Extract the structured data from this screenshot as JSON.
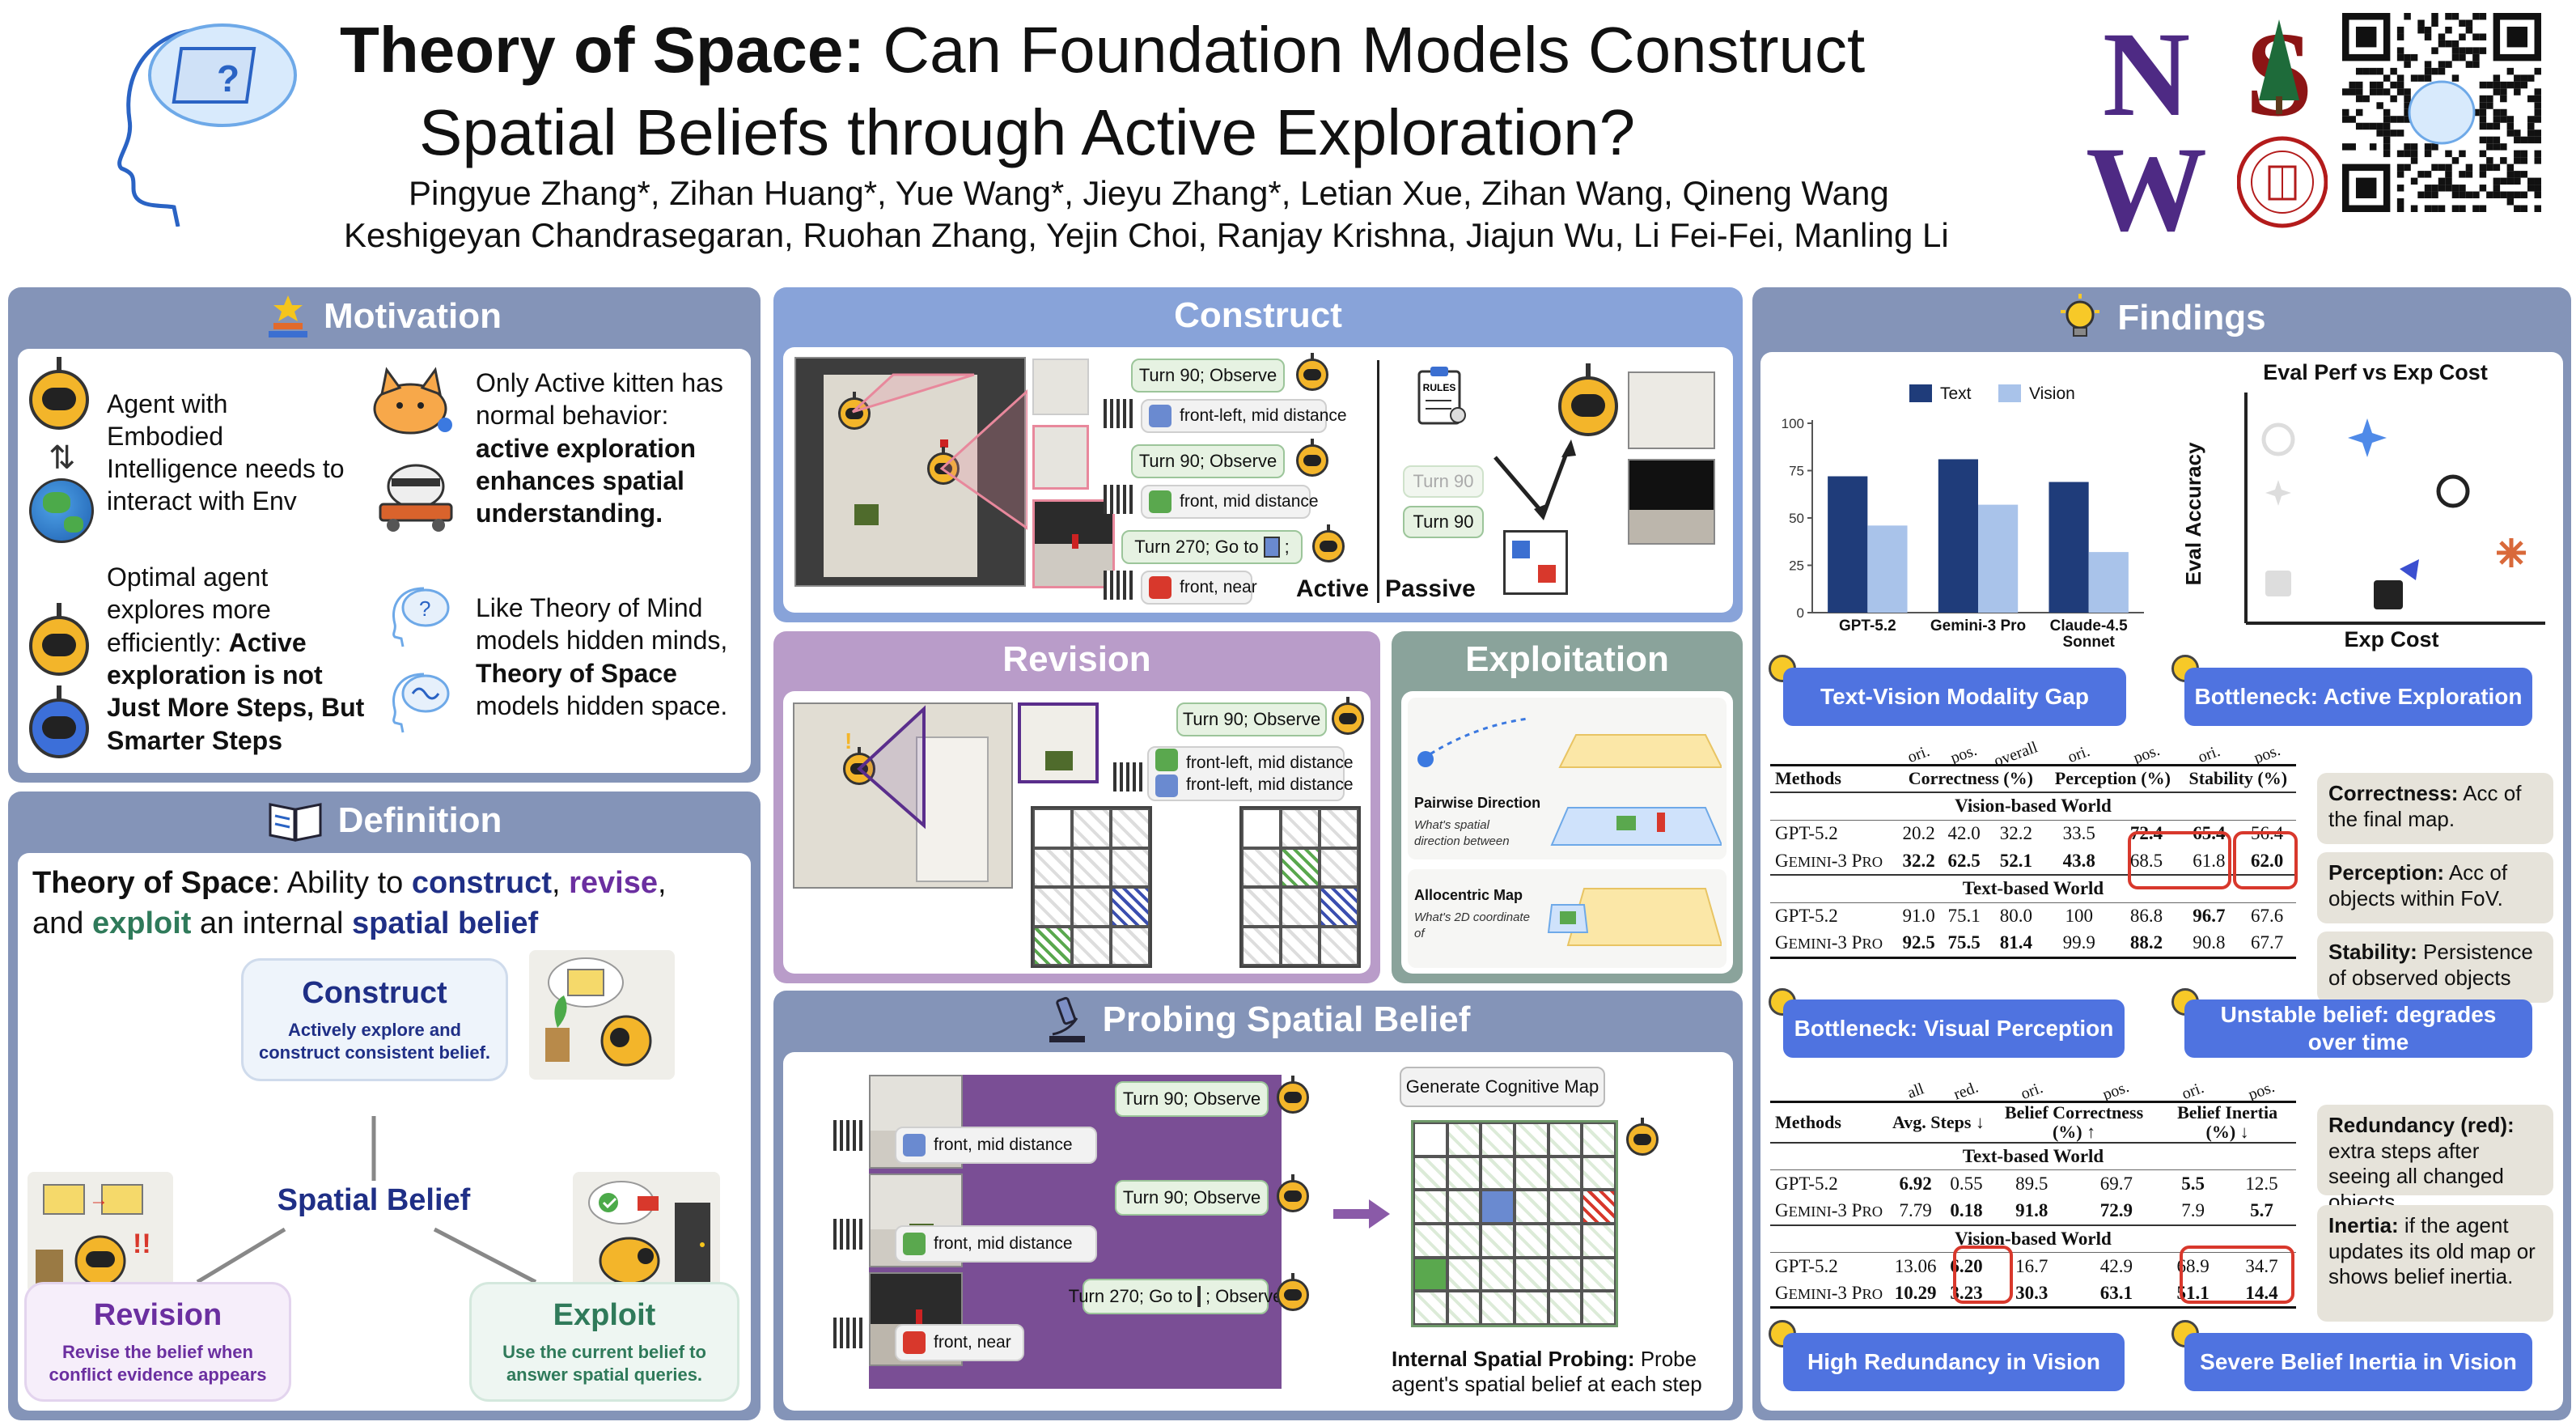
{
  "header": {
    "title_part1": "Theory of Space:",
    "title_part1_rest": " Can Foundation Models Construct",
    "title_line2": "Spatial Beliefs through Active Exploration?",
    "authors_line1": "Pingyue Zhang*, Zihan Huang*, Yue Wang*, Jieyu Zhang*, Letian Xue, Zihan Wang, Qineng Wang",
    "authors_line2": "Keshigeyan Chandrasegaran, Ruohan Zhang, Yejin Choi, Ranjay Krishna, Jiajun Wu, Li Fei-Fei, Manling Li",
    "logo_letters": "NW",
    "cornell_seal": "CORNELL UNIVERSITY · FOUNDED A.D. 1865",
    "colors": {
      "northwestern": "#4e2a84",
      "stanford": "#8c1515",
      "cornell": "#b31b1b"
    }
  },
  "motivation": {
    "title": "Motivation",
    "agent_text": "Agent with Embodied Intelligence needs to interact with Env",
    "kitten_text_plain": "Only Active kitten has normal behavior: ",
    "kitten_text_bold": "active exploration enhances spatial understanding.",
    "optimal_text_plain": "Optimal agent explores more efficiently: ",
    "optimal_text_bold": "Active exploration is not Just More Steps, But Smarter Steps",
    "tom_text_plain1": "Like Theory of Mind models hidden minds, ",
    "tom_text_bold": "Theory of Space",
    "tom_text_plain2": " models hidden space."
  },
  "definition": {
    "title": "Definition",
    "def_bold1": "Theory of Space",
    "def_text1": ": Ability to ",
    "def_construct": "construct",
    "def_comma": ", ",
    "def_revise": "revise",
    "def_text2": ",",
    "def_and": "and ",
    "def_exploit": "exploit",
    "def_text3": " an internal ",
    "def_belief": "spatial belief",
    "center": "Spatial Belief",
    "construct_title": "Construct",
    "construct_desc": "Actively explore and construct consistent belief.",
    "revision_title": "Revision",
    "revision_desc": "Revise the belief when conflict evidence appears",
    "exploit_title": "Exploit",
    "exploit_desc": "Use the current belief to answer spatial queries.",
    "colors": {
      "construct": "#1f2f86",
      "revise": "#6b2fa0",
      "exploit": "#2f7a5a",
      "belief": "#1f2f86"
    }
  },
  "construct": {
    "title": "Construct",
    "steps": [
      "Turn 90; Observe",
      "front-left, mid distance",
      "Turn 90; Observe",
      "front, mid distance",
      "Turn 270; Go to",
      ";",
      "front, near"
    ],
    "passive_turns": [
      "Turn 90",
      "Turn 90"
    ],
    "active_label": "Active",
    "passive_label": "Passive",
    "rules_label": "RULES"
  },
  "revision": {
    "title": "Revision",
    "step": "Turn 90; Observe",
    "obs1": "front-left, mid distance",
    "obs2": "front-left, mid distance"
  },
  "exploitation": {
    "title": "Exploitation",
    "pairwise_title": "Pairwise Direction",
    "pairwise_q": "What's spatial direction between",
    "allocentric_title": "Allocentric Map",
    "allocentric_q": "What's 2D coordinate of"
  },
  "probing": {
    "title": "Probing Spatial Belief",
    "steps": [
      "Turn 90; Observe",
      "front, mid distance",
      "Turn 90; Observe",
      "front, mid distance",
      "Turn 270; Go to",
      "; Observe",
      "front, near"
    ],
    "generate_label": "Generate Cognitive Map",
    "caption_bold": "Internal Spatial Probing:",
    "caption_text": " Probe agent's spatial belief at each step"
  },
  "findings": {
    "title": "Findings",
    "chart_title": "Eval Perf vs Exp Cost",
    "scatter_xlabel": "Exp Cost",
    "scatter_ylabel": "Eval Accuracy",
    "tags": {
      "modality_gap": "Text-Vision Modality Gap",
      "bottleneck_active": "Bottleneck: Active Exploration",
      "bottleneck_visual": "Bottleneck: Visual Perception",
      "unstable_belief": "Unstable belief: degrades over time",
      "redundancy": "High Redundancy in Vision",
      "inertia": "Severe Belief Inertia in Vision"
    },
    "notes": {
      "correctness_bold": "Correctness:",
      "correctness_text": " Acc of the final map.",
      "perception_bold": "Perception:",
      "perception_text": " Acc of objects within FoV.",
      "stability_bold": "Stability:",
      "stability_text": " Persistence of observed objects",
      "redundancy_bold": "Redundancy (red):",
      "redundancy_text": " extra steps after seeing all changed objects",
      "inertia_bold": "Inertia:",
      "inertia_text": " if the agent updates its old map or shows belief inertia."
    },
    "table1": {
      "rot": [
        "ori.",
        "pos.",
        "overall",
        "ori.",
        "pos.",
        "ori.",
        "pos."
      ],
      "headers": [
        "Methods",
        "Correctness (%)",
        "Perception (%)",
        "Stability (%)"
      ],
      "sections": [
        {
          "name": "Vision-based World",
          "rows": [
            {
              "m": "GPT-5.2",
              "v": [
                "20.2",
                "42.0",
                "32.2",
                "33.5",
                "72.4",
                "65.4",
                "56.4"
              ]
            },
            {
              "m": "Gemini-3 Pro",
              "v": [
                "32.2",
                "62.5",
                "52.1",
                "43.8",
                "68.5",
                "61.8",
                "62.0"
              ]
            }
          ]
        },
        {
          "name": "Text-based World",
          "rows": [
            {
              "m": "GPT-5.2",
              "v": [
                "91.0",
                "75.1",
                "80.0",
                "100",
                "86.8",
                "96.7",
                "67.6"
              ]
            },
            {
              "m": "Gemini-3 Pro",
              "v": [
                "92.5",
                "75.5",
                "81.4",
                "99.9",
                "88.2",
                "90.8",
                "67.7"
              ]
            }
          ]
        }
      ]
    },
    "table2": {
      "rot": [
        "all",
        "red.",
        "ori.",
        "pos.",
        "ori.",
        "pos."
      ],
      "headers": [
        "Methods",
        "Avg. Steps ↓",
        "Belief Correctness (%) ↑",
        "Belief Inertia (%) ↓"
      ],
      "sections": [
        {
          "name": "Text-based World",
          "rows": [
            {
              "m": "GPT-5.2",
              "v": [
                "6.92",
                "0.55",
                "89.5",
                "69.7",
                "5.5",
                "12.5"
              ]
            },
            {
              "m": "Gemini-3 Pro",
              "v": [
                "7.79",
                "0.18",
                "91.8",
                "72.9",
                "7.9",
                "5.7"
              ]
            }
          ]
        },
        {
          "name": "Vision-based World",
          "rows": [
            {
              "m": "GPT-5.2",
              "v": [
                "13.06",
                "6.20",
                "16.7",
                "42.9",
                "68.9",
                "34.7"
              ]
            },
            {
              "m": "Gemini-3 Pro",
              "v": [
                "10.29",
                "3.23",
                "30.3",
                "63.1",
                "51.1",
                "14.4"
              ]
            }
          ]
        }
      ]
    }
  },
  "chart_data": {
    "type": "bar",
    "categories": [
      "GPT-5.2",
      "Gemini-3 Pro",
      "Claude-4.5 Sonnet"
    ],
    "series": [
      {
        "name": "Text",
        "values": [
          72,
          81,
          69
        ],
        "color": "#1f3c7a"
      },
      {
        "name": "Vision",
        "values": [
          46,
          57,
          32
        ],
        "color": "#a9c3ea"
      }
    ],
    "yticks": [
      "0",
      "25",
      "50",
      "75",
      "100"
    ],
    "ylim": [
      0,
      100
    ],
    "legend": "top-center"
  }
}
